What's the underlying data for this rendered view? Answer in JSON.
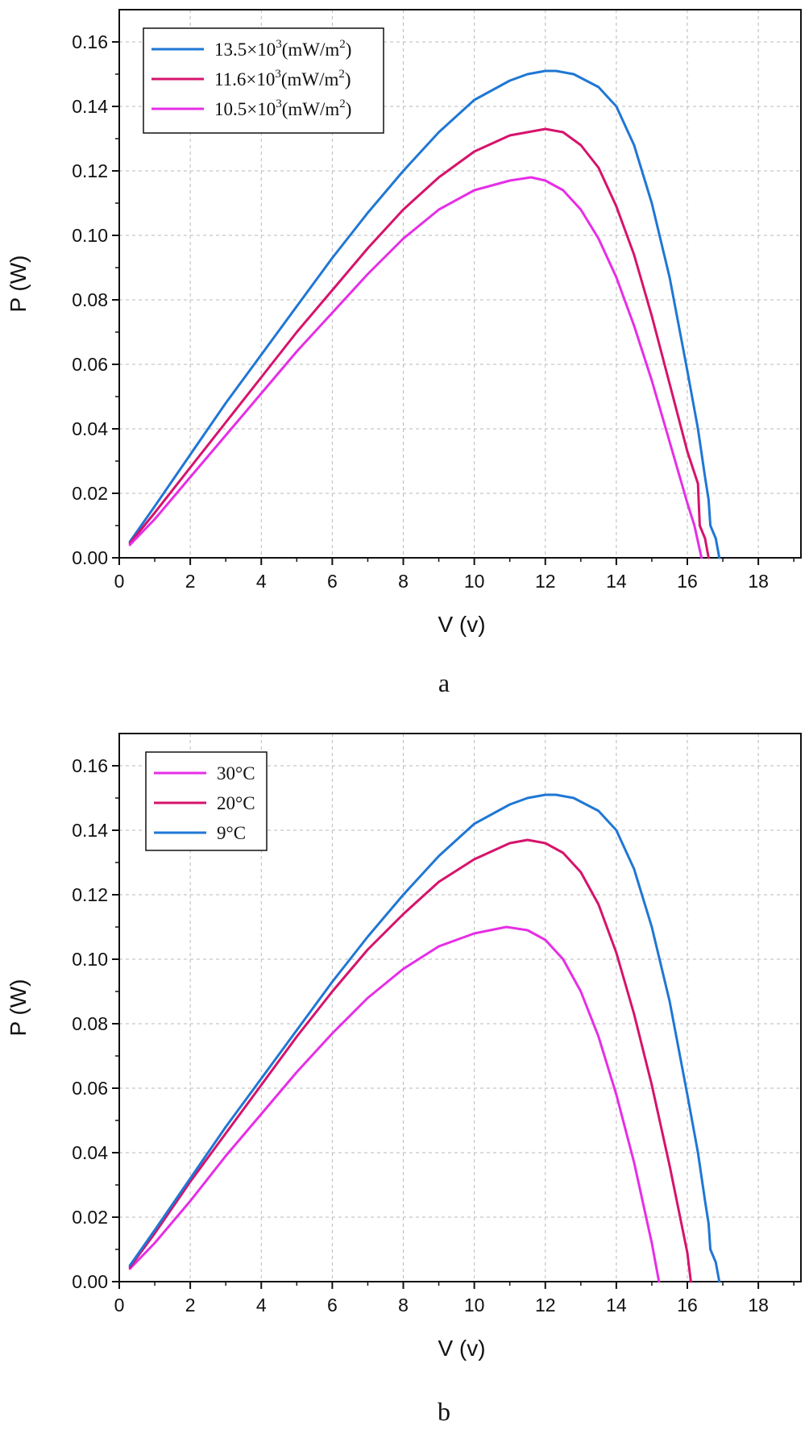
{
  "chart_data": [
    {
      "type": "line",
      "panel_label": "a",
      "xlabel": "V (v)",
      "ylabel": "P (W)",
      "xlim": [
        0,
        19.2
      ],
      "ylim": [
        0,
        0.17
      ],
      "xticks": [
        "0",
        "2",
        "4",
        "6",
        "8",
        "10",
        "12",
        "14",
        "16",
        "18"
      ],
      "yticks": [
        "0.00",
        "0.02",
        "0.04",
        "0.06",
        "0.08",
        "0.10",
        "0.12",
        "0.14",
        "0.16"
      ],
      "grid": true,
      "legend_position": "top-left",
      "series": [
        {
          "name": "13.5×10³(mW/m²)",
          "legend": {
            "base": "13.5×10",
            "sup1": "3",
            "mid": "(mW/m",
            "sup2": "2",
            "end": ")"
          },
          "color": "#1f77d4",
          "x": [
            0.3,
            1,
            2,
            3,
            4,
            5,
            6,
            7,
            8,
            9,
            10,
            11,
            11.5,
            12,
            12.3,
            12.8,
            13.5,
            14,
            14.5,
            15,
            15.5,
            16,
            16.3,
            16.5,
            16.6,
            16.65,
            16.8,
            16.9
          ],
          "y": [
            0.005,
            0.016,
            0.032,
            0.048,
            0.063,
            0.078,
            0.093,
            0.107,
            0.12,
            0.132,
            0.142,
            0.148,
            0.15,
            0.151,
            0.151,
            0.15,
            0.146,
            0.14,
            0.128,
            0.11,
            0.087,
            0.058,
            0.04,
            0.025,
            0.018,
            0.01,
            0.006,
            0.0
          ]
        },
        {
          "name": "11.6×10³(mW/m²)",
          "legend": {
            "base": "11.6×10",
            "sup1": "3",
            "mid": "(mW/m",
            "sup2": "2",
            "end": ")"
          },
          "color": "#d6136c",
          "x": [
            0.3,
            1,
            2,
            3,
            4,
            5,
            6,
            7,
            8,
            9,
            10,
            11,
            11.5,
            12,
            12.5,
            13,
            13.5,
            14,
            14.5,
            15,
            15.5,
            16,
            16.3,
            16.35,
            16.5,
            16.6
          ],
          "y": [
            0.0045,
            0.014,
            0.028,
            0.042,
            0.056,
            0.07,
            0.083,
            0.096,
            0.108,
            0.118,
            0.126,
            0.131,
            0.132,
            0.133,
            0.132,
            0.128,
            0.121,
            0.109,
            0.094,
            0.075,
            0.054,
            0.033,
            0.023,
            0.01,
            0.006,
            0.0
          ]
        },
        {
          "name": "10.5×10³(mW/m²)",
          "legend": {
            "base": "10.5×10",
            "sup1": "3",
            "mid": "(mW/m",
            "sup2": "2",
            "end": ")"
          },
          "color": "#e62ee6",
          "x": [
            0.3,
            1,
            2,
            3,
            4,
            5,
            6,
            7,
            8,
            9,
            10,
            11,
            11.6,
            12,
            12.5,
            13,
            13.5,
            14,
            14.5,
            15,
            15.5,
            16,
            16.2,
            16.3,
            16.4
          ],
          "y": [
            0.004,
            0.012,
            0.025,
            0.038,
            0.051,
            0.064,
            0.076,
            0.088,
            0.099,
            0.108,
            0.114,
            0.117,
            0.118,
            0.117,
            0.114,
            0.108,
            0.099,
            0.087,
            0.072,
            0.055,
            0.036,
            0.017,
            0.01,
            0.005,
            0.0
          ]
        }
      ]
    },
    {
      "type": "line",
      "panel_label": "b",
      "xlabel": "V (v)",
      "ylabel": "P (W)",
      "xlim": [
        0,
        19.2
      ],
      "ylim": [
        0,
        0.17
      ],
      "xticks": [
        "0",
        "2",
        "4",
        "6",
        "8",
        "10",
        "12",
        "14",
        "16",
        "18"
      ],
      "yticks": [
        "0.00",
        "0.02",
        "0.04",
        "0.06",
        "0.08",
        "0.10",
        "0.12",
        "0.14",
        "0.16"
      ],
      "grid": true,
      "legend_position": "top-left",
      "series": [
        {
          "name": "30°C",
          "legend": {
            "base": "30°C"
          },
          "color": "#e62ee6",
          "x": [
            0.3,
            1,
            2,
            3,
            4,
            5,
            6,
            7,
            8,
            9,
            10,
            10.9,
            11.5,
            12,
            12.5,
            13,
            13.5,
            14,
            14.5,
            15,
            15.2
          ],
          "y": [
            0.004,
            0.012,
            0.025,
            0.039,
            0.052,
            0.065,
            0.077,
            0.088,
            0.097,
            0.104,
            0.108,
            0.11,
            0.109,
            0.106,
            0.1,
            0.09,
            0.076,
            0.058,
            0.037,
            0.012,
            0.0
          ]
        },
        {
          "name": "20°C",
          "legend": {
            "base": "20°C"
          },
          "color": "#d6136c",
          "x": [
            0.3,
            1,
            2,
            3,
            4,
            5,
            6,
            7,
            8,
            9,
            10,
            11,
            11.5,
            12,
            12.5,
            13,
            13.5,
            14,
            14.5,
            15,
            15.5,
            16,
            16.1
          ],
          "y": [
            0.0045,
            0.015,
            0.031,
            0.046,
            0.061,
            0.076,
            0.09,
            0.103,
            0.114,
            0.124,
            0.131,
            0.136,
            0.137,
            0.136,
            0.133,
            0.127,
            0.117,
            0.102,
            0.083,
            0.061,
            0.036,
            0.009,
            0.0
          ]
        },
        {
          "name": "9°C",
          "legend": {
            "base": "9°C"
          },
          "color": "#1f77d4",
          "x": [
            0.3,
            1,
            2,
            3,
            4,
            5,
            6,
            7,
            8,
            9,
            10,
            11,
            11.5,
            12,
            12.3,
            12.8,
            13.5,
            14,
            14.5,
            15,
            15.5,
            16,
            16.3,
            16.5,
            16.6,
            16.65,
            16.8,
            16.9
          ],
          "y": [
            0.005,
            0.016,
            0.032,
            0.048,
            0.063,
            0.078,
            0.093,
            0.107,
            0.12,
            0.132,
            0.142,
            0.148,
            0.15,
            0.151,
            0.151,
            0.15,
            0.146,
            0.14,
            0.128,
            0.11,
            0.087,
            0.058,
            0.04,
            0.025,
            0.018,
            0.01,
            0.006,
            0.0
          ]
        }
      ]
    }
  ]
}
